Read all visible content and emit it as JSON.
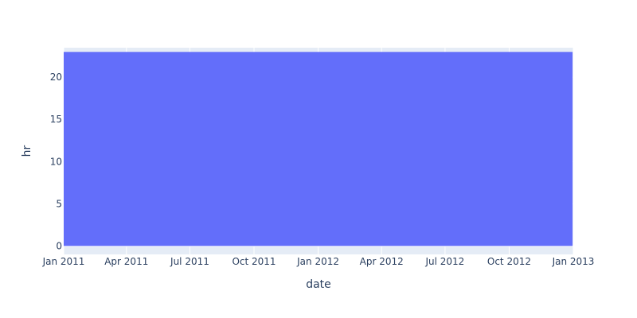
{
  "chart_data": {
    "type": "area",
    "title": "",
    "xlabel": "date",
    "ylabel": "hr",
    "x_range": [
      "2011-01-01",
      "2013-01-01"
    ],
    "ylim": [
      -1,
      23.5
    ],
    "x_ticks": [
      "Jan 2011",
      "Apr 2011",
      "Jul 2011",
      "Oct 2011",
      "Jan 2012",
      "Apr 2012",
      "Jul 2012",
      "Oct 2012",
      "Jan 2013"
    ],
    "y_ticks": [
      0,
      5,
      10,
      15,
      20
    ],
    "series": [
      {
        "x": [
          "2011-01-01",
          "2012-12-31"
        ],
        "y_min": 0,
        "y_max": 23,
        "color": "#636efa"
      }
    ],
    "grid": true,
    "plot_bgcolor": "#e5ecf6"
  }
}
